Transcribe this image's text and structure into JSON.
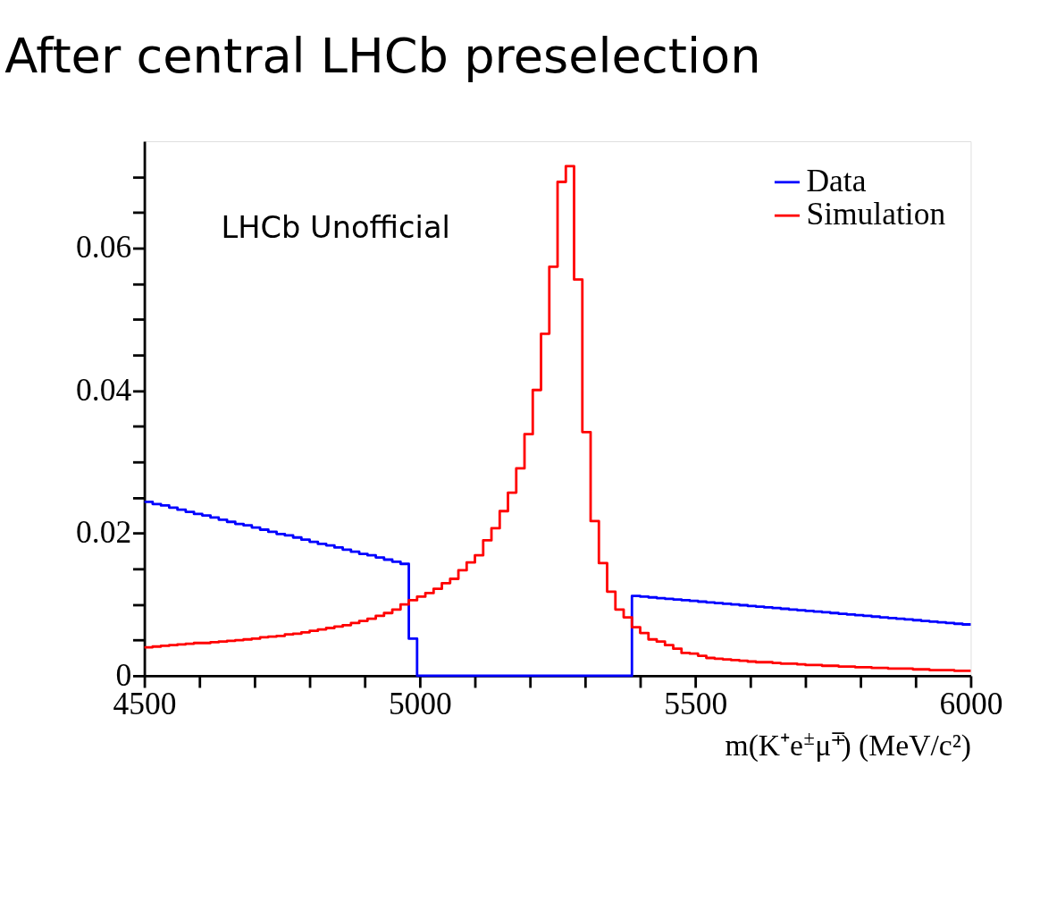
{
  "chart_data": {
    "type": "histogram",
    "title": "After central LHCb preselection",
    "xlabel": "m(K⁺e$^{±}$μ$^{∓}$) (MeV/c²)",
    "annotations": [
      "LHCb Unofficial"
    ],
    "bins": [
      4500,
      4515,
      4530,
      4545,
      4560,
      4575,
      4590,
      4605,
      4620,
      4635,
      4650,
      4665,
      4680,
      4695,
      4710,
      4725,
      4740,
      4755,
      4770,
      4785,
      4800,
      4815,
      4830,
      4845,
      4860,
      4875,
      4890,
      4905,
      4920,
      4935,
      4950,
      4965,
      4980,
      4995,
      5010,
      5025,
      5040,
      5055,
      5070,
      5085,
      5100,
      5115,
      5130,
      5145,
      5160,
      5175,
      5190,
      5205,
      5220,
      5235,
      5250,
      5265,
      5280,
      5295,
      5310,
      5325,
      5340,
      5355,
      5370,
      5385,
      5400,
      5415,
      5430,
      5445,
      5460,
      5475,
      5490,
      5505,
      5520,
      5535,
      5550,
      5565,
      5580,
      5595,
      5610,
      5625,
      5640,
      5655,
      5670,
      5685,
      5700,
      5715,
      5730,
      5745,
      5760,
      5775,
      5790,
      5805,
      5820,
      5835,
      5850,
      5865,
      5880,
      5895,
      5910,
      5925,
      5940,
      5955,
      5970,
      5985,
      6000
    ],
    "series": [
      {
        "name": "Data",
        "color": "#0000ff",
        "values": [
          0.0244,
          0.0241,
          0.0239,
          0.0236,
          0.0233,
          0.023,
          0.0227,
          0.0225,
          0.0222,
          0.0219,
          0.0216,
          0.0213,
          0.0211,
          0.0208,
          0.0205,
          0.0202,
          0.0199,
          0.0197,
          0.0194,
          0.0191,
          0.0188,
          0.0185,
          0.0183,
          0.018,
          0.0177,
          0.0174,
          0.0171,
          0.0169,
          0.0166,
          0.0163,
          0.016,
          0.0157,
          0.0052,
          0,
          0,
          0,
          0,
          0,
          0,
          0,
          0,
          0,
          0,
          0,
          0,
          0,
          0,
          0,
          0,
          0,
          0,
          0,
          0,
          0,
          0,
          0,
          0,
          0,
          0,
          0.0112,
          0.0111,
          0.011,
          0.0109,
          0.0108,
          0.0107,
          0.0106,
          0.0105,
          0.0104,
          0.0103,
          0.0102,
          0.0101,
          0.01,
          0.0099,
          0.0098,
          0.0097,
          0.0096,
          0.0095,
          0.0094,
          0.0093,
          0.0092,
          0.0091,
          0.009,
          0.0089,
          0.0088,
          0.0087,
          0.0086,
          0.0085,
          0.0084,
          0.0083,
          0.0082,
          0.0081,
          0.008,
          0.0079,
          0.0078,
          0.0077,
          0.0076,
          0.0075,
          0.0074,
          0.0073,
          0.0072
        ]
      },
      {
        "name": "Simulation",
        "color": "#ff0000",
        "values": [
          0.004,
          0.0041,
          0.0042,
          0.0043,
          0.0044,
          0.0045,
          0.0046,
          0.0046,
          0.0047,
          0.0048,
          0.0049,
          0.005,
          0.0051,
          0.0052,
          0.0054,
          0.0055,
          0.0056,
          0.0058,
          0.0059,
          0.0061,
          0.0063,
          0.0065,
          0.0067,
          0.0069,
          0.0071,
          0.0074,
          0.0077,
          0.008,
          0.0084,
          0.0088,
          0.0093,
          0.01,
          0.0106,
          0.0111,
          0.0116,
          0.0122,
          0.013,
          0.0136,
          0.0148,
          0.0159,
          0.0169,
          0.019,
          0.0207,
          0.0231,
          0.0257,
          0.0291,
          0.0339,
          0.0401,
          0.048,
          0.0574,
          0.0693,
          0.0715,
          0.0556,
          0.0342,
          0.0217,
          0.0158,
          0.0118,
          0.0093,
          0.0082,
          0.0068,
          0.006,
          0.0051,
          0.0048,
          0.0043,
          0.0038,
          0.0032,
          0.0031,
          0.0028,
          0.0025,
          0.0024,
          0.0023,
          0.0022,
          0.0021,
          0.002,
          0.0019,
          0.0019,
          0.0018,
          0.0017,
          0.0017,
          0.0016,
          0.0015,
          0.0015,
          0.0014,
          0.0014,
          0.0013,
          0.0013,
          0.0012,
          0.0012,
          0.0011,
          0.0011,
          0.001,
          0.001,
          0.001,
          0.0009,
          0.0009,
          0.0008,
          0.0008,
          0.0008,
          0.0007,
          0.0007
        ]
      }
    ],
    "xlim": [
      4500,
      6000
    ],
    "xticks": [
      4500,
      {
        "value": 4600,
        "label": null
      },
      {
        "value": 4700,
        "label": null
      },
      {
        "value": 4800,
        "label": null
      },
      {
        "value": 4900,
        "label": null
      },
      5000,
      {
        "value": 5100,
        "label": null
      },
      {
        "value": 5200,
        "label": null
      },
      {
        "value": 5300,
        "label": null
      },
      {
        "value": 5400,
        "label": null
      },
      5500,
      {
        "value": 5600,
        "label": null
      },
      {
        "value": 5700,
        "label": null
      },
      {
        "value": 5800,
        "label": null
      },
      {
        "value": 5900,
        "label": null
      },
      6000
    ],
    "ylim": [
      0,
      0.075
    ],
    "yticks": [
      0,
      {
        "value": 0.005,
        "label": null
      },
      {
        "value": 0.01,
        "label": null
      },
      {
        "value": 0.015,
        "label": null
      },
      0.02,
      {
        "value": 0.025,
        "label": null
      },
      {
        "value": 0.03,
        "label": null
      },
      {
        "value": 0.035,
        "label": null
      },
      0.04,
      {
        "value": 0.045,
        "label": null
      },
      {
        "value": 0.05,
        "label": null
      },
      {
        "value": 0.055,
        "label": null
      },
      0.06,
      {
        "value": 0.065,
        "label": null
      },
      {
        "value": 0.07,
        "label": null
      }
    ],
    "grid": false,
    "legend": "top right"
  }
}
